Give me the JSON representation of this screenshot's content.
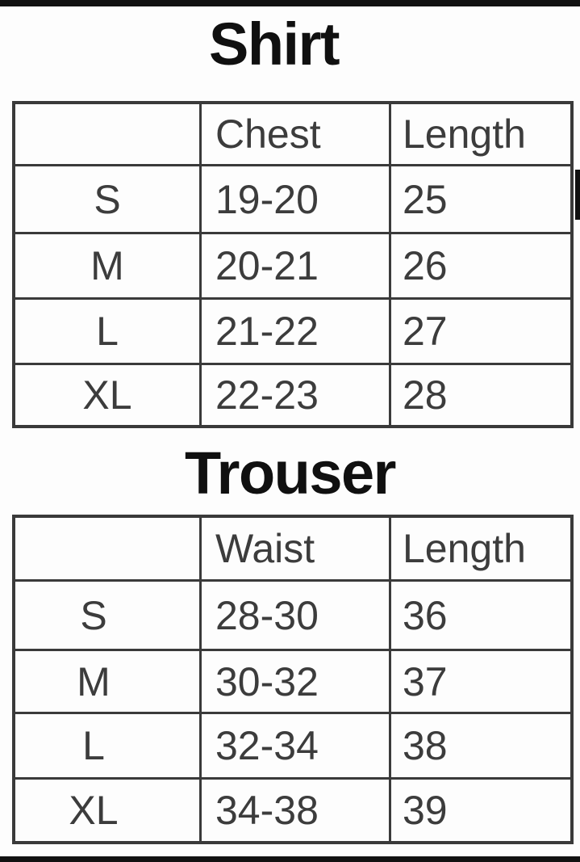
{
  "page": {
    "background_color": "#fdfdfd",
    "table_border_color": "#3a3a3a",
    "cell_text_color": "#3c3c3c",
    "title_color": "#101010",
    "edge_bar_color": "#111111"
  },
  "shirt": {
    "title": "Shirt",
    "columns": [
      "",
      "Chest",
      "Length"
    ],
    "rows": [
      {
        "size": "S",
        "chest": "19-20",
        "length": "25"
      },
      {
        "size": "M",
        "chest": "20-21",
        "length": "26"
      },
      {
        "size": "L",
        "chest": "21-22",
        "length": "27"
      },
      {
        "size": "XL",
        "chest": "22-23",
        "length": "28"
      }
    ]
  },
  "trouser": {
    "title": "Trouser",
    "columns": [
      "",
      "Waist",
      "Length"
    ],
    "rows": [
      {
        "size": "S",
        "waist": "28-30",
        "length": "36"
      },
      {
        "size": "M",
        "waist": "30-32",
        "length": "37"
      },
      {
        "size": "L",
        "waist": "32-34",
        "length": "38"
      },
      {
        "size": "XL",
        "waist": "34-38",
        "length": "39"
      }
    ]
  }
}
